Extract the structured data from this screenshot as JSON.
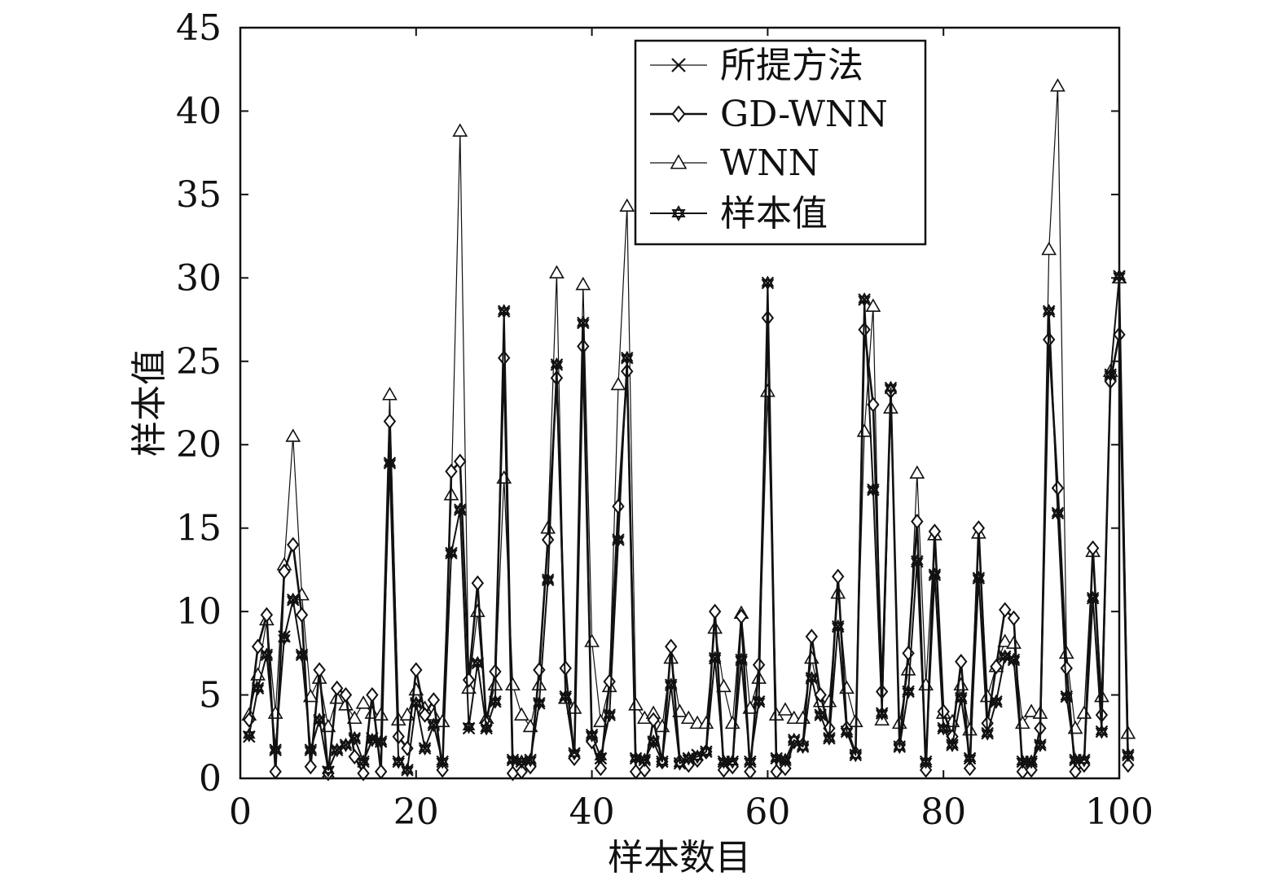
{
  "chart_data": {
    "type": "line",
    "title": "",
    "xlabel": "样本数目",
    "ylabel": "样本值",
    "xlim": [
      0,
      100
    ],
    "ylim": [
      0,
      45
    ],
    "xticks": [
      0,
      20,
      40,
      60,
      80,
      100
    ],
    "yticks": [
      0,
      5,
      10,
      15,
      20,
      25,
      30,
      35,
      40,
      45
    ],
    "grid": false,
    "legend_position": "top-right",
    "series": [
      {
        "name": "所提方法",
        "marker": "x",
        "values": [
          2.5,
          5.4,
          7.4,
          1.7,
          8.5,
          10.7,
          7.4,
          1.7,
          3.5,
          0.4,
          1.7,
          2.0,
          2.4,
          1.0,
          2.4,
          2.2,
          18.9,
          1.0,
          0.5,
          4.5,
          1.8,
          3.2,
          1.0,
          13.5,
          16.1,
          3.0,
          6.9,
          3.0,
          4.6,
          28.0,
          1.1,
          1.0,
          1.1,
          4.5,
          11.9,
          24.8,
          4.9,
          1.5,
          27.3,
          2.6,
          1.2,
          3.8,
          14.3,
          25.2,
          1.2,
          1.1,
          2.2,
          1.0,
          5.6,
          0.9,
          1.2,
          1.4,
          1.6,
          7.2,
          1.0,
          1.0,
          7.1,
          1.0,
          4.6,
          29.7,
          1.2,
          1.1,
          2.3,
          1.9,
          6.0,
          3.8,
          2.4,
          9.1,
          2.8,
          1.4,
          28.7,
          17.3,
          3.9,
          23.4,
          1.9,
          5.2,
          13.0,
          1.0,
          12.2,
          3.0,
          2.0,
          4.8,
          1.2,
          12.0,
          2.7,
          4.6,
          7.3,
          7.1,
          1.0,
          1.0,
          2.0,
          28.0,
          15.9,
          4.9,
          1.1,
          1.1,
          10.8,
          2.8,
          24.2,
          30.1,
          1.4
        ]
      },
      {
        "name": "GD-WNN",
        "marker": "diamond",
        "values": [
          3.5,
          7.9,
          9.8,
          0.4,
          12.4,
          14.0,
          9.8,
          0.7,
          6.5,
          0.3,
          5.4,
          5.0,
          1.3,
          0.3,
          5.0,
          0.4,
          21.4,
          2.5,
          1.8,
          6.5,
          3.8,
          4.7,
          0.5,
          18.4,
          19.0,
          5.9,
          11.7,
          3.3,
          6.4,
          25.2,
          0.3,
          0.4,
          0.7,
          6.5,
          14.3,
          24.0,
          6.6,
          1.2,
          25.9,
          2.2,
          0.6,
          5.8,
          16.3,
          24.4,
          0.4,
          0.5,
          3.5,
          1.0,
          7.9,
          1.0,
          0.8,
          1.1,
          1.6,
          10.0,
          0.5,
          0.7,
          9.7,
          0.4,
          6.8,
          27.6,
          0.4,
          0.6,
          2.2,
          2.0,
          8.5,
          5.0,
          3.0,
          12.1,
          3.0,
          1.5,
          26.9,
          22.4,
          5.2,
          23.2,
          2.0,
          7.5,
          15.4,
          0.5,
          14.8,
          4.0,
          2.5,
          7.0,
          0.6,
          15.0,
          3.3,
          6.7,
          10.1,
          9.6,
          0.4,
          0.5,
          3.0,
          26.3,
          17.4,
          6.6,
          0.4,
          0.8,
          13.8,
          3.8,
          23.8,
          26.6,
          0.8
        ]
      },
      {
        "name": "WNN",
        "marker": "triangle",
        "values": [
          3.8,
          6.2,
          9.5,
          3.9,
          12.8,
          20.5,
          11.0,
          4.9,
          6.0,
          3.1,
          4.8,
          4.4,
          3.6,
          4.5,
          3.9,
          3.8,
          23.0,
          3.5,
          3.8,
          5.3,
          4.2,
          3.8,
          3.4,
          17.0,
          38.8,
          5.4,
          10.0,
          3.6,
          5.6,
          18.0,
          5.6,
          3.8,
          3.1,
          5.6,
          15.0,
          30.3,
          4.8,
          4.2,
          29.6,
          8.2,
          3.4,
          5.5,
          23.6,
          34.3,
          4.4,
          3.6,
          3.9,
          3.1,
          7.2,
          4.0,
          3.6,
          3.3,
          3.3,
          9.0,
          5.5,
          3.3,
          9.9,
          4.2,
          6.0,
          23.2,
          3.8,
          4.1,
          3.6,
          3.6,
          7.2,
          4.6,
          4.6,
          11.1,
          5.4,
          3.4,
          20.8,
          28.3,
          3.5,
          22.2,
          3.3,
          6.5,
          18.3,
          5.6,
          14.6,
          3.9,
          3.4,
          5.6,
          2.9,
          14.7,
          4.9,
          6.7,
          8.2,
          8.1,
          3.3,
          4.0,
          3.9,
          31.7,
          41.5,
          7.5,
          3.0,
          3.9,
          13.6,
          4.9,
          24.4,
          30.0,
          2.7
        ]
      },
      {
        "name": "样本值",
        "marker": "star",
        "values": [
          2.6,
          5.4,
          7.4,
          1.7,
          8.4,
          10.7,
          7.4,
          1.7,
          3.5,
          0.5,
          1.7,
          2.0,
          2.4,
          1.0,
          2.3,
          2.2,
          18.9,
          1.0,
          0.5,
          4.5,
          1.8,
          3.2,
          1.0,
          13.5,
          16.1,
          3.1,
          6.9,
          3.0,
          4.6,
          28.0,
          1.1,
          1.0,
          1.1,
          4.5,
          11.9,
          24.8,
          4.9,
          1.5,
          27.3,
          2.6,
          1.3,
          3.8,
          14.3,
          25.2,
          1.2,
          1.1,
          2.2,
          1.0,
          5.6,
          0.9,
          1.2,
          1.3,
          1.6,
          7.2,
          1.0,
          1.0,
          7.1,
          1.0,
          4.6,
          29.7,
          1.2,
          1.1,
          2.3,
          1.9,
          6.0,
          3.8,
          2.4,
          9.1,
          2.8,
          1.4,
          28.7,
          17.3,
          3.9,
          23.4,
          1.9,
          5.2,
          13.0,
          1.0,
          12.2,
          3.0,
          2.0,
          4.8,
          1.2,
          12.0,
          2.7,
          4.6,
          7.3,
          7.1,
          1.0,
          1.0,
          2.0,
          28.0,
          15.9,
          4.9,
          1.1,
          1.1,
          10.8,
          2.8,
          24.2,
          30.1,
          1.4
        ]
      }
    ]
  }
}
